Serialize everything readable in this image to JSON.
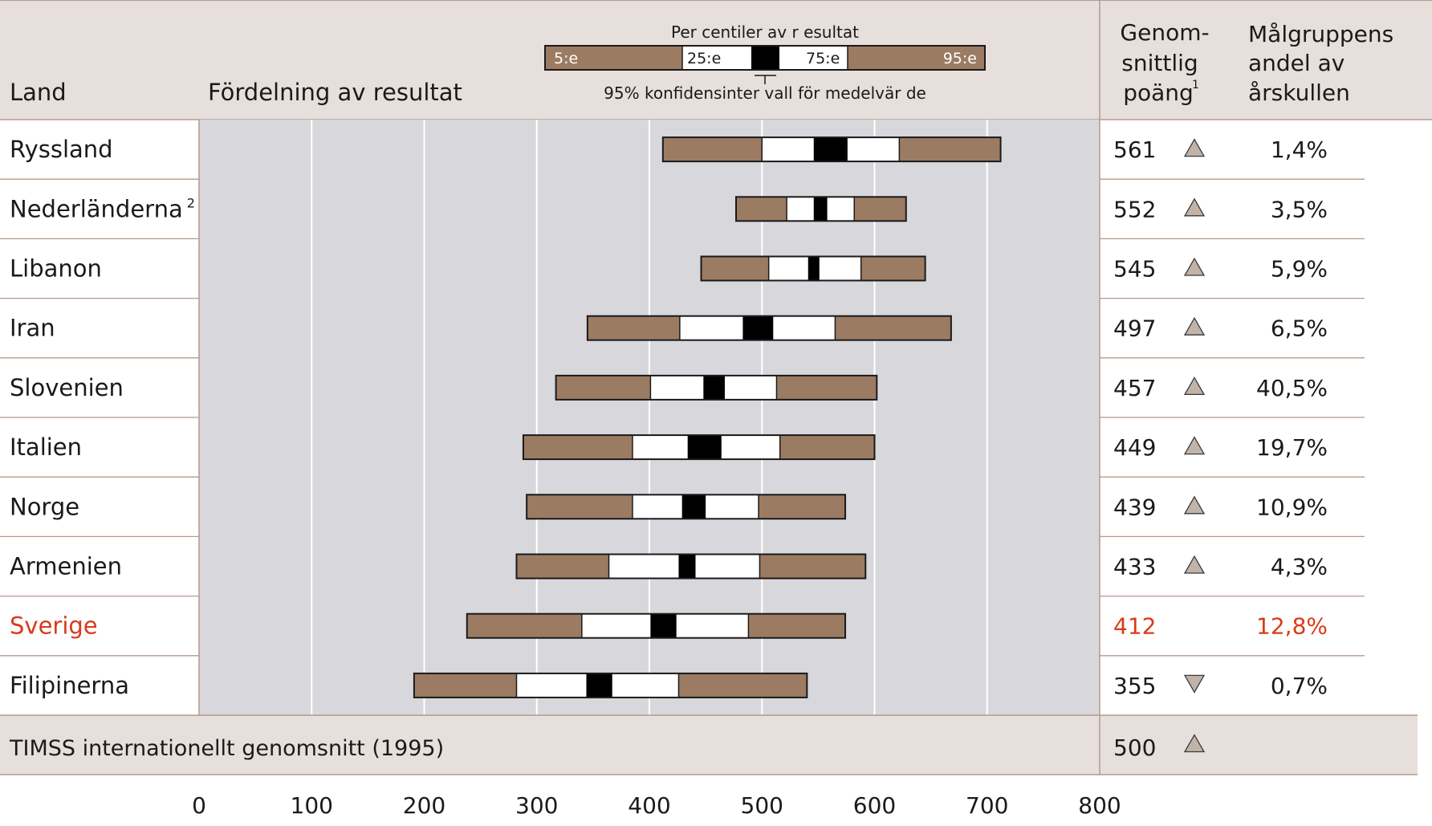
{
  "colors": {
    "header_bg": "#e7dfdb",
    "plot_bg": "#d8d7dc",
    "tail": "#9c7b63",
    "iqr": "#ffffff",
    "ci": "#000000",
    "highlight": "#d93a1a",
    "triangle": "#c2b3a8",
    "divider": "#b49a8c"
  },
  "header": {
    "land": "Land",
    "distribution": "Fördelning av resultat",
    "legend_title": "Per centiler av r esultat",
    "legend_p5": "5:e",
    "legend_p25": "25:e",
    "legend_p75": "75:e",
    "legend_p95": "95:e",
    "legend_ci": "95% konfidensinter vall för medelvär de",
    "avg_line1": "Genom-",
    "avg_line2": "snittlig",
    "avg_line3": "poäng",
    "avg_sup": "1",
    "target_line1": "Målgruppens",
    "target_line2": "andel av",
    "target_line3": "årskullen"
  },
  "chart_data": {
    "type": "percentile-bar",
    "x_ticks": [
      0,
      100,
      200,
      300,
      400,
      500,
      600,
      700,
      800
    ],
    "xlim": [
      0,
      800
    ],
    "rows": [
      {
        "country": "Ryssland",
        "sup": "",
        "p5": 412,
        "p25": 500,
        "ci_low": 546,
        "ci_high": 576,
        "p75": 622,
        "p95": 712,
        "mean": "561",
        "trend": "up",
        "share": "1,4%",
        "highlight": false
      },
      {
        "country": "Nederländerna",
        "sup": "2",
        "p5": 477,
        "p25": 522,
        "ci_low": 546,
        "ci_high": 558,
        "p75": 582,
        "p95": 628,
        "mean": "552",
        "trend": "up",
        "share": "3,5%",
        "highlight": false
      },
      {
        "country": "Libanon",
        "sup": "",
        "p5": 446,
        "p25": 506,
        "ci_low": 541,
        "ci_high": 551,
        "p75": 588,
        "p95": 645,
        "mean": "545",
        "trend": "up",
        "share": "5,9%",
        "highlight": false
      },
      {
        "country": "Iran",
        "sup": "",
        "p5": 345,
        "p25": 427,
        "ci_low": 483,
        "ci_high": 510,
        "p75": 565,
        "p95": 668,
        "mean": "497",
        "trend": "up",
        "share": "6,5%",
        "highlight": false
      },
      {
        "country": "Slovenien",
        "sup": "",
        "p5": 317,
        "p25": 401,
        "ci_low": 448,
        "ci_high": 467,
        "p75": 513,
        "p95": 602,
        "mean": "457",
        "trend": "up",
        "share": "40,5%",
        "highlight": false
      },
      {
        "country": "Italien",
        "sup": "",
        "p5": 288,
        "p25": 385,
        "ci_low": 434,
        "ci_high": 464,
        "p75": 516,
        "p95": 600,
        "mean": "449",
        "trend": "up",
        "share": "19,7%",
        "highlight": false
      },
      {
        "country": "Norge",
        "sup": "",
        "p5": 291,
        "p25": 385,
        "ci_low": 429,
        "ci_high": 450,
        "p75": 497,
        "p95": 574,
        "mean": "439",
        "trend": "up",
        "share": "10,9%",
        "highlight": false
      },
      {
        "country": "Armenien",
        "sup": "",
        "p5": 282,
        "p25": 364,
        "ci_low": 426,
        "ci_high": 441,
        "p75": 498,
        "p95": 592,
        "mean": "433",
        "trend": "up",
        "share": "4,3%",
        "highlight": false
      },
      {
        "country": "Sverige",
        "sup": "",
        "p5": 238,
        "p25": 340,
        "ci_low": 401,
        "ci_high": 424,
        "p75": 488,
        "p95": 574,
        "mean": "412",
        "trend": "",
        "share": "12,8%",
        "highlight": true
      },
      {
        "country": "Filipinerna",
        "sup": "",
        "p5": 191,
        "p25": 282,
        "ci_low": 344,
        "ci_high": 367,
        "p75": 426,
        "p95": 540,
        "mean": "355",
        "trend": "down",
        "share": "0,7%",
        "highlight": false
      }
    ],
    "footer": {
      "label": "TIMSS internationellt genomsnitt (1995)",
      "mean": "500",
      "trend": "up"
    }
  }
}
